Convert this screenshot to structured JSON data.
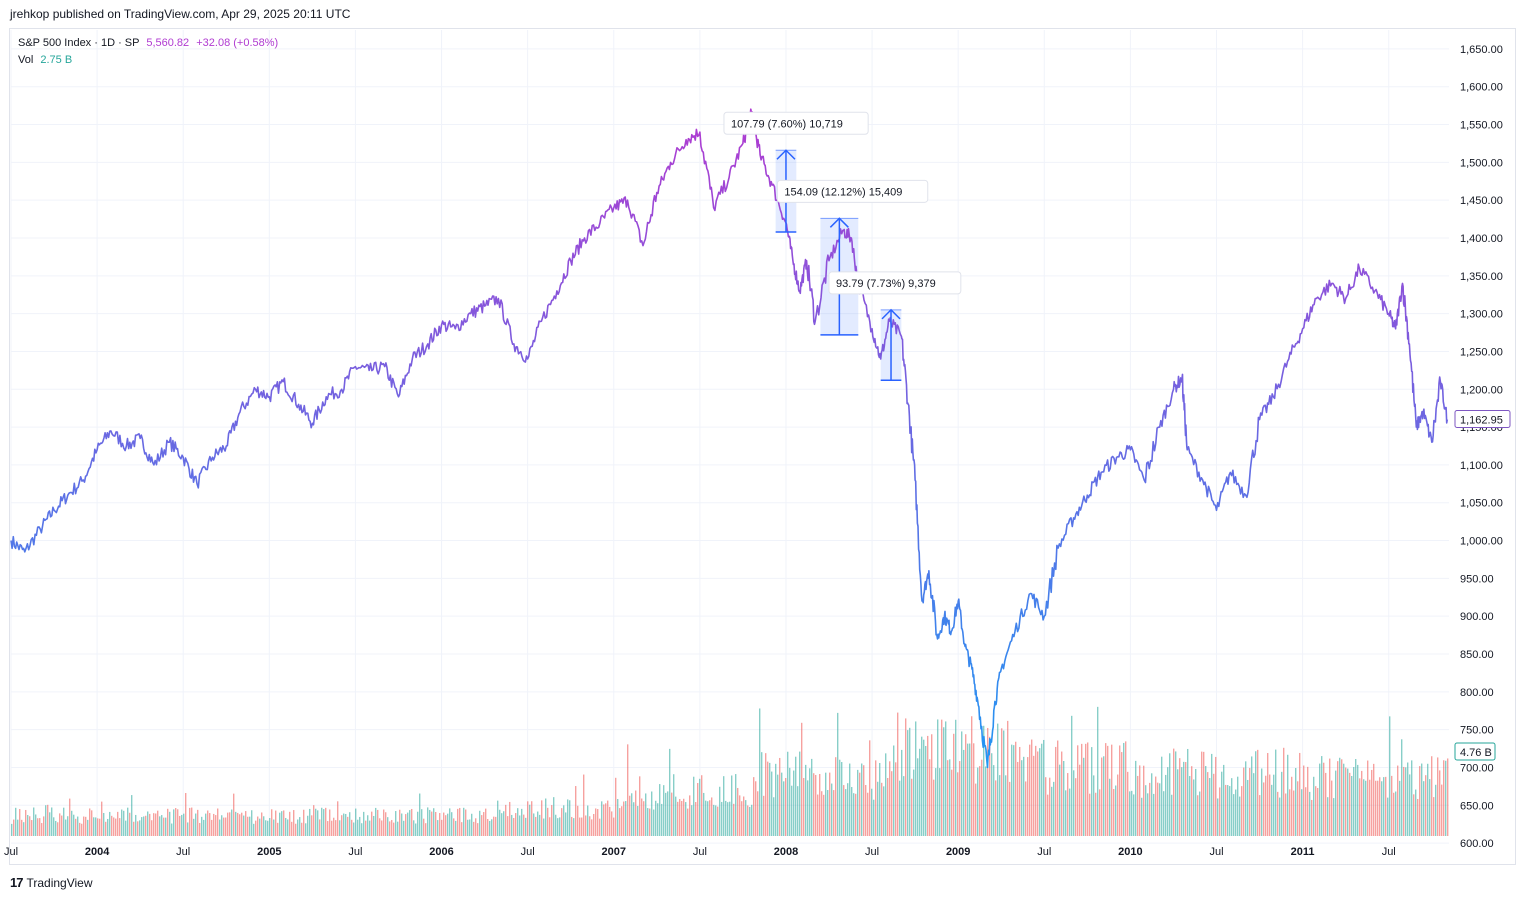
{
  "header": {
    "published": "jrehkop published on TradingView.com, Apr 29, 2025 20:11 UTC"
  },
  "legend": {
    "symbol": "S&P 500 Index · 1D · SP",
    "price": "5,560.82",
    "change": "+32.08 (+0.58%)",
    "vol_label": "Vol",
    "vol_value": "2.75 B"
  },
  "footer": {
    "logo": "17",
    "brand": "TradingView"
  },
  "colors": {
    "line_top": "#b03bd1",
    "line_bottom": "#2196f3",
    "vol_up": "#26a69a",
    "vol_down": "#ef5350",
    "grid": "#f0f3fa"
  },
  "chart_data": {
    "type": "line",
    "ylim": [
      575,
      1675
    ],
    "y_ticks": [
      "1,650.00",
      "1,600.00",
      "1,550.00",
      "1,500.00",
      "1,450.00",
      "1,400.00",
      "1,350.00",
      "1,300.00",
      "1,250.00",
      "1,200.00",
      "1,150.00",
      "1,100.00",
      "1,050.00",
      "1,000.00",
      "950.00",
      "900.00",
      "850.00",
      "800.00",
      "750.00",
      "700.00",
      "650.00",
      "600.00"
    ],
    "y_tick_values": [
      1650,
      1600,
      1550,
      1500,
      1450,
      1400,
      1350,
      1300,
      1250,
      1200,
      1150,
      1100,
      1050,
      1000,
      950,
      900,
      850,
      800,
      750,
      700,
      650,
      600
    ],
    "x_ticks": [
      {
        "label": "Jul",
        "t": 2003.5
      },
      {
        "label": "2004",
        "t": 2004.0
      },
      {
        "label": "Jul",
        "t": 2004.5
      },
      {
        "label": "2005",
        "t": 2005.0
      },
      {
        "label": "Jul",
        "t": 2005.5
      },
      {
        "label": "2006",
        "t": 2006.0
      },
      {
        "label": "Jul",
        "t": 2006.5
      },
      {
        "label": "2007",
        "t": 2007.0
      },
      {
        "label": "Jul",
        "t": 2007.5
      },
      {
        "label": "2008",
        "t": 2008.0
      },
      {
        "label": "Jul",
        "t": 2008.5
      },
      {
        "label": "2009",
        "t": 2009.0
      },
      {
        "label": "Jul",
        "t": 2009.5
      },
      {
        "label": "2010",
        "t": 2010.0
      },
      {
        "label": "Jul",
        "t": 2010.5
      },
      {
        "label": "2011",
        "t": 2011.0
      },
      {
        "label": "Jul",
        "t": 2011.5
      }
    ],
    "xlim": [
      2003.5,
      2011.85
    ],
    "series": [
      {
        "points": [
          [
            2003.5,
            1000
          ],
          [
            2003.58,
            985
          ],
          [
            2003.67,
            1015
          ],
          [
            2003.75,
            1040
          ],
          [
            2003.83,
            1060
          ],
          [
            2003.92,
            1080
          ],
          [
            2004.0,
            1120
          ],
          [
            2004.08,
            1145
          ],
          [
            2004.17,
            1125
          ],
          [
            2004.25,
            1135
          ],
          [
            2004.33,
            1100
          ],
          [
            2004.42,
            1130
          ],
          [
            2004.5,
            1110
          ],
          [
            2004.58,
            1075
          ],
          [
            2004.67,
            1110
          ],
          [
            2004.75,
            1125
          ],
          [
            2004.83,
            1170
          ],
          [
            2004.92,
            1200
          ],
          [
            2005.0,
            1190
          ],
          [
            2005.08,
            1210
          ],
          [
            2005.17,
            1180
          ],
          [
            2005.25,
            1155
          ],
          [
            2005.33,
            1190
          ],
          [
            2005.42,
            1200
          ],
          [
            2005.5,
            1230
          ],
          [
            2005.58,
            1225
          ],
          [
            2005.67,
            1230
          ],
          [
            2005.75,
            1190
          ],
          [
            2005.83,
            1240
          ],
          [
            2005.92,
            1260
          ],
          [
            2006.0,
            1285
          ],
          [
            2006.08,
            1280
          ],
          [
            2006.17,
            1300
          ],
          [
            2006.25,
            1310
          ],
          [
            2006.33,
            1320
          ],
          [
            2006.42,
            1260
          ],
          [
            2006.5,
            1240
          ],
          [
            2006.58,
            1290
          ],
          [
            2006.67,
            1330
          ],
          [
            2006.75,
            1370
          ],
          [
            2006.83,
            1400
          ],
          [
            2006.92,
            1420
          ],
          [
            2007.0,
            1440
          ],
          [
            2007.08,
            1450
          ],
          [
            2007.17,
            1390
          ],
          [
            2007.25,
            1460
          ],
          [
            2007.33,
            1500
          ],
          [
            2007.42,
            1530
          ],
          [
            2007.5,
            1540
          ],
          [
            2007.58,
            1440
          ],
          [
            2007.67,
            1480
          ],
          [
            2007.75,
            1525
          ],
          [
            2007.8,
            1565
          ],
          [
            2007.85,
            1510
          ],
          [
            2007.92,
            1470
          ],
          [
            2008.0,
            1420
          ],
          [
            2008.04,
            1370
          ],
          [
            2008.08,
            1330
          ],
          [
            2008.12,
            1370
          ],
          [
            2008.17,
            1290
          ],
          [
            2008.25,
            1370
          ],
          [
            2008.33,
            1410
          ],
          [
            2008.38,
            1400
          ],
          [
            2008.42,
            1340
          ],
          [
            2008.5,
            1280
          ],
          [
            2008.55,
            1240
          ],
          [
            2008.6,
            1290
          ],
          [
            2008.67,
            1270
          ],
          [
            2008.71,
            1180
          ],
          [
            2008.75,
            1080
          ],
          [
            2008.79,
            920
          ],
          [
            2008.83,
            960
          ],
          [
            2008.88,
            870
          ],
          [
            2008.92,
            900
          ],
          [
            2008.96,
            880
          ],
          [
            2009.0,
            920
          ],
          [
            2009.04,
            860
          ],
          [
            2009.08,
            830
          ],
          [
            2009.12,
            780
          ],
          [
            2009.17,
            700
          ],
          [
            2009.21,
            780
          ],
          [
            2009.25,
            830
          ],
          [
            2009.33,
            880
          ],
          [
            2009.42,
            930
          ],
          [
            2009.5,
            900
          ],
          [
            2009.58,
            990
          ],
          [
            2009.67,
            1030
          ],
          [
            2009.75,
            1060
          ],
          [
            2009.83,
            1090
          ],
          [
            2009.92,
            1110
          ],
          [
            2010.0,
            1120
          ],
          [
            2010.08,
            1080
          ],
          [
            2010.17,
            1150
          ],
          [
            2010.25,
            1200
          ],
          [
            2010.3,
            1215
          ],
          [
            2010.33,
            1120
          ],
          [
            2010.42,
            1080
          ],
          [
            2010.5,
            1040
          ],
          [
            2010.58,
            1090
          ],
          [
            2010.67,
            1060
          ],
          [
            2010.75,
            1160
          ],
          [
            2010.83,
            1190
          ],
          [
            2010.92,
            1240
          ],
          [
            2011.0,
            1280
          ],
          [
            2011.08,
            1320
          ],
          [
            2011.17,
            1340
          ],
          [
            2011.25,
            1320
          ],
          [
            2011.33,
            1360
          ],
          [
            2011.42,
            1330
          ],
          [
            2011.5,
            1300
          ],
          [
            2011.54,
            1280
          ],
          [
            2011.58,
            1340
          ],
          [
            2011.62,
            1260
          ],
          [
            2011.66,
            1150
          ],
          [
            2011.7,
            1170
          ],
          [
            2011.75,
            1130
          ],
          [
            2011.8,
            1210
          ],
          [
            2011.84,
            1160
          ]
        ]
      }
    ],
    "last_price_label": "1,162.95",
    "volume_label": "4.76 B",
    "measurements": [
      {
        "label": "107.79 (7.60%) 10,719",
        "t0": 2007.94,
        "t1": 2008.06,
        "low": 1408,
        "high": 1516
      },
      {
        "label": "154.09 (12.12%) 15,409",
        "t0": 2008.2,
        "t1": 2008.42,
        "low": 1272,
        "high": 1426
      },
      {
        "label": "93.79 (7.73%) 9,379",
        "t0": 2008.55,
        "t1": 2008.67,
        "low": 1212,
        "high": 1305
      }
    ]
  }
}
